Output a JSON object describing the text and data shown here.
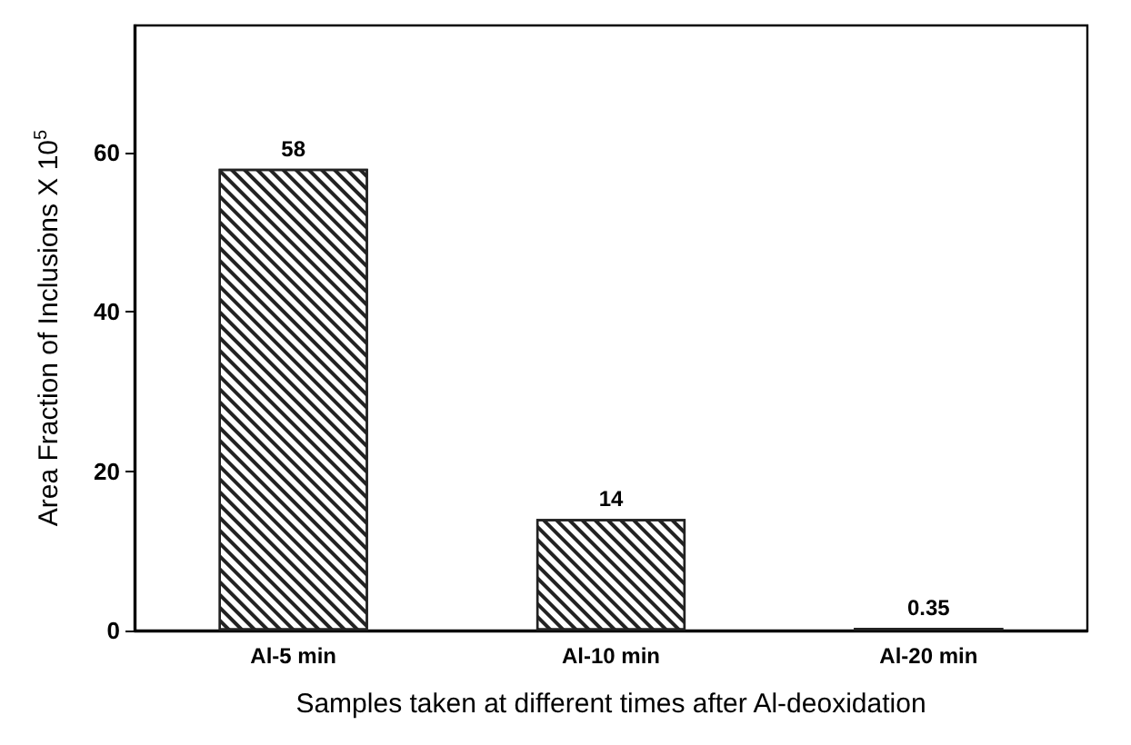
{
  "chart_data": {
    "type": "bar",
    "xlabel": "Samples taken at different times after Al-deoxidation",
    "ylabel": "Area Fraction of Inclusions X 10$^{5}$",
    "categories": [
      "Al-5 min",
      "Al-10 min",
      "Al-20 min"
    ],
    "values": [
      58,
      14,
      0.35
    ],
    "color": "#222222",
    "data_labels": true,
    "ylim": [
      0,
      76
    ],
    "yticks": [
      0,
      20,
      40,
      60
    ],
    "grid": false
  }
}
